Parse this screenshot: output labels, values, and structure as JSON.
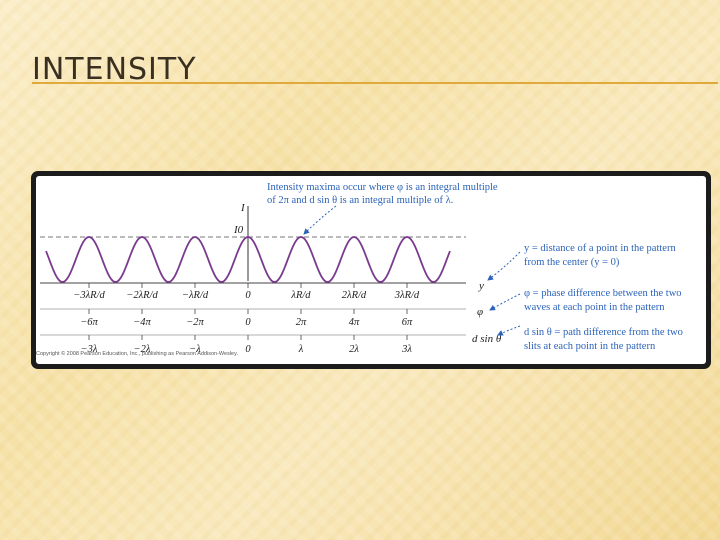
{
  "slide": {
    "title": "INTENSITY"
  },
  "figure": {
    "annotation_top_line1": "Intensity maxima occur where φ is an integral multiple",
    "annotation_top_line2": "of 2π and d sin θ is an integral multiple of λ.",
    "axis_label_I": "I",
    "axis_label_I0": "I0",
    "row_y": [
      "−3λR/d",
      "−2λR/d",
      "−λR/d",
      "0",
      "λR/d",
      "2λR/d",
      "3λR/d"
    ],
    "row_phi": [
      "−6π",
      "−4π",
      "−2π",
      "0",
      "2π",
      "4π",
      "6π"
    ],
    "row_dsin": [
      "−3λ",
      "−2λ",
      "−λ",
      "0",
      "λ",
      "2λ",
      "3λ"
    ],
    "row_symbols": {
      "y": "y",
      "phi": "φ",
      "dsin": "d sin θ"
    },
    "legend_y_line1": "y = distance of a point in the pattern",
    "legend_y_line2": "from the center (y = 0)",
    "legend_phi_line1": "φ = phase difference between the two",
    "legend_phi_line2": "waves at each point in the pattern",
    "legend_dsin_line1": "d sin θ = path difference from the two",
    "legend_dsin_line2": "slits at each point in the pattern",
    "copyright": "Copyright © 2008 Pearson Education, Inc., publishing as Pearson Addison-Wesley.",
    "colors": {
      "curve": "#7a3b8f",
      "annotation": "#2c63b8",
      "rule": "#999999"
    }
  }
}
